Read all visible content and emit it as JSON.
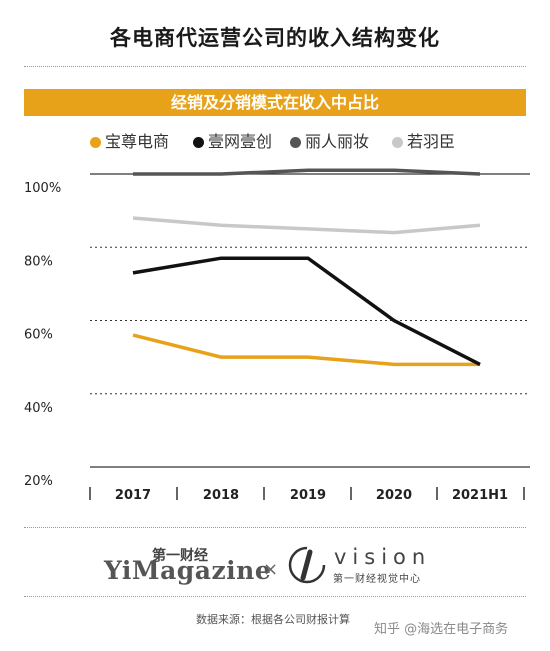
{
  "title": "各电商代运营公司的收入结构变化",
  "subtitle": "经销及分销模式在收入中占比",
  "colors": {
    "accent": "#e8a21a",
    "baozun": "#e8a21a",
    "yiwang": "#111111",
    "liren": "#555555",
    "ruoyuchen": "#c8c8c8"
  },
  "chart_data": {
    "type": "line",
    "title": "经销及分销模式在收入中占比",
    "categories": [
      "2017",
      "2018",
      "2019",
      "2020",
      "2021H1"
    ],
    "yticks": [
      "20%",
      "40%",
      "60%",
      "80%",
      "100%"
    ],
    "ylim": [
      20,
      100
    ],
    "grid": true,
    "legend_position": "top",
    "series": [
      {
        "name": "宝尊电商",
        "color": "#e8a21a",
        "values": [
          56,
          50,
          50,
          48,
          48
        ]
      },
      {
        "name": "壹网壹创",
        "color": "#111111",
        "values": [
          73,
          77,
          77,
          60,
          48
        ]
      },
      {
        "name": "丽人丽妆",
        "color": "#555555",
        "values": [
          100,
          100,
          101,
          101,
          100
        ]
      },
      {
        "name": "若羽臣",
        "color": "#c8c8c8",
        "values": [
          88,
          86,
          85,
          84,
          86
        ]
      }
    ]
  },
  "branding": {
    "yimagazine_cn": "第一财经",
    "yimagazine_en": "YiMagazine",
    "separator": "×",
    "vision_word": "vision",
    "vision_cn": "第一财经视觉中心"
  },
  "source": "数据来源：根据各公司财报计算",
  "watermark": "知乎 @海选在电子商务"
}
